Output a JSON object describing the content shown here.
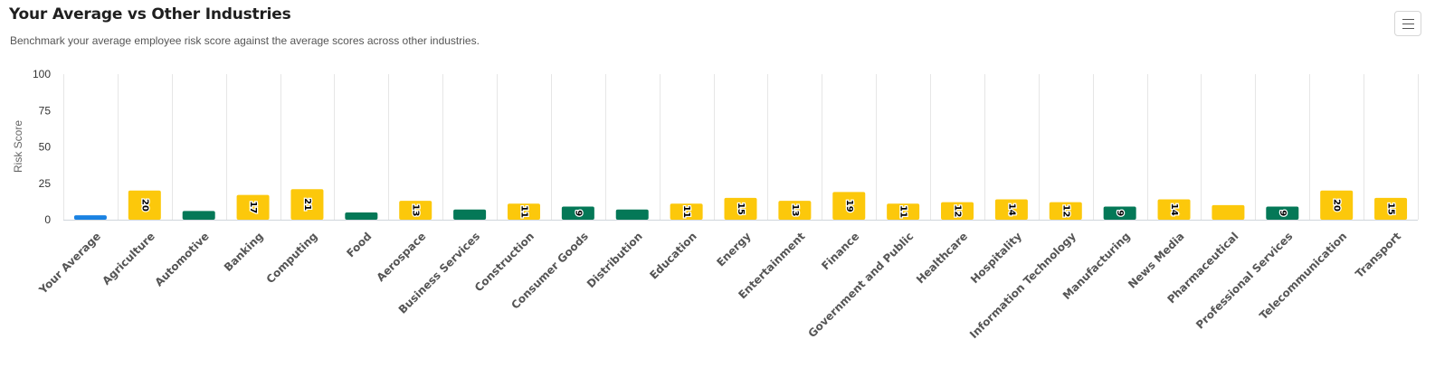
{
  "header": {
    "title": "Your Average vs Other Industries",
    "subtitle": "Benchmark your average employee risk score against the average scores across other industries."
  },
  "menu": {
    "icon": "hamburger-menu-icon"
  },
  "colors": {
    "your_average": "#1a82e2",
    "below_threshold": "#047857",
    "above_threshold": "#fcc80b",
    "gridline": "#e6e6e6"
  },
  "chart_data": {
    "type": "bar",
    "title": "Your Average vs Other Industries",
    "subtitle": "Benchmark your average employee risk score against the average scores across other industries.",
    "xlabel": "",
    "ylabel": "Risk Score",
    "ylim": [
      0,
      100
    ],
    "yticks": [
      0,
      25,
      50,
      75,
      100
    ],
    "grid": "vertical",
    "legend": "none",
    "categories": [
      "Your Average",
      "Agriculture",
      "Automotive",
      "Banking",
      "Computing",
      "Food",
      "Aerospace",
      "Business Services",
      "Construction",
      "Consumer Goods",
      "Distribution",
      "Education",
      "Energy",
      "Entertainment",
      "Finance",
      "Government and Public",
      "Healthcare",
      "Hospitality",
      "Information Technology",
      "Manufacturing",
      "News Media",
      "Pharmaceutical",
      "Professional Services",
      "Telecommunication",
      "Transport"
    ],
    "values": [
      3,
      20,
      6,
      17,
      21,
      5,
      13,
      7,
      11,
      9,
      7,
      11,
      15,
      13,
      19,
      11,
      12,
      14,
      12,
      9,
      14,
      10,
      9,
      20,
      15
    ],
    "data_labels": [
      "",
      "20",
      "",
      "17",
      "21",
      "",
      "13",
      "",
      "11",
      "9",
      "",
      "11",
      "15",
      "13",
      "19",
      "11",
      "12",
      "14",
      "12",
      "9",
      "14",
      "",
      "9",
      "20",
      "15"
    ],
    "bar_colors": [
      "#1a82e2",
      "#fcc80b",
      "#047857",
      "#fcc80b",
      "#fcc80b",
      "#047857",
      "#fcc80b",
      "#047857",
      "#fcc80b",
      "#047857",
      "#047857",
      "#fcc80b",
      "#fcc80b",
      "#fcc80b",
      "#fcc80b",
      "#fcc80b",
      "#fcc80b",
      "#fcc80b",
      "#fcc80b",
      "#047857",
      "#fcc80b",
      "#fcc80b",
      "#047857",
      "#fcc80b",
      "#fcc80b"
    ]
  }
}
